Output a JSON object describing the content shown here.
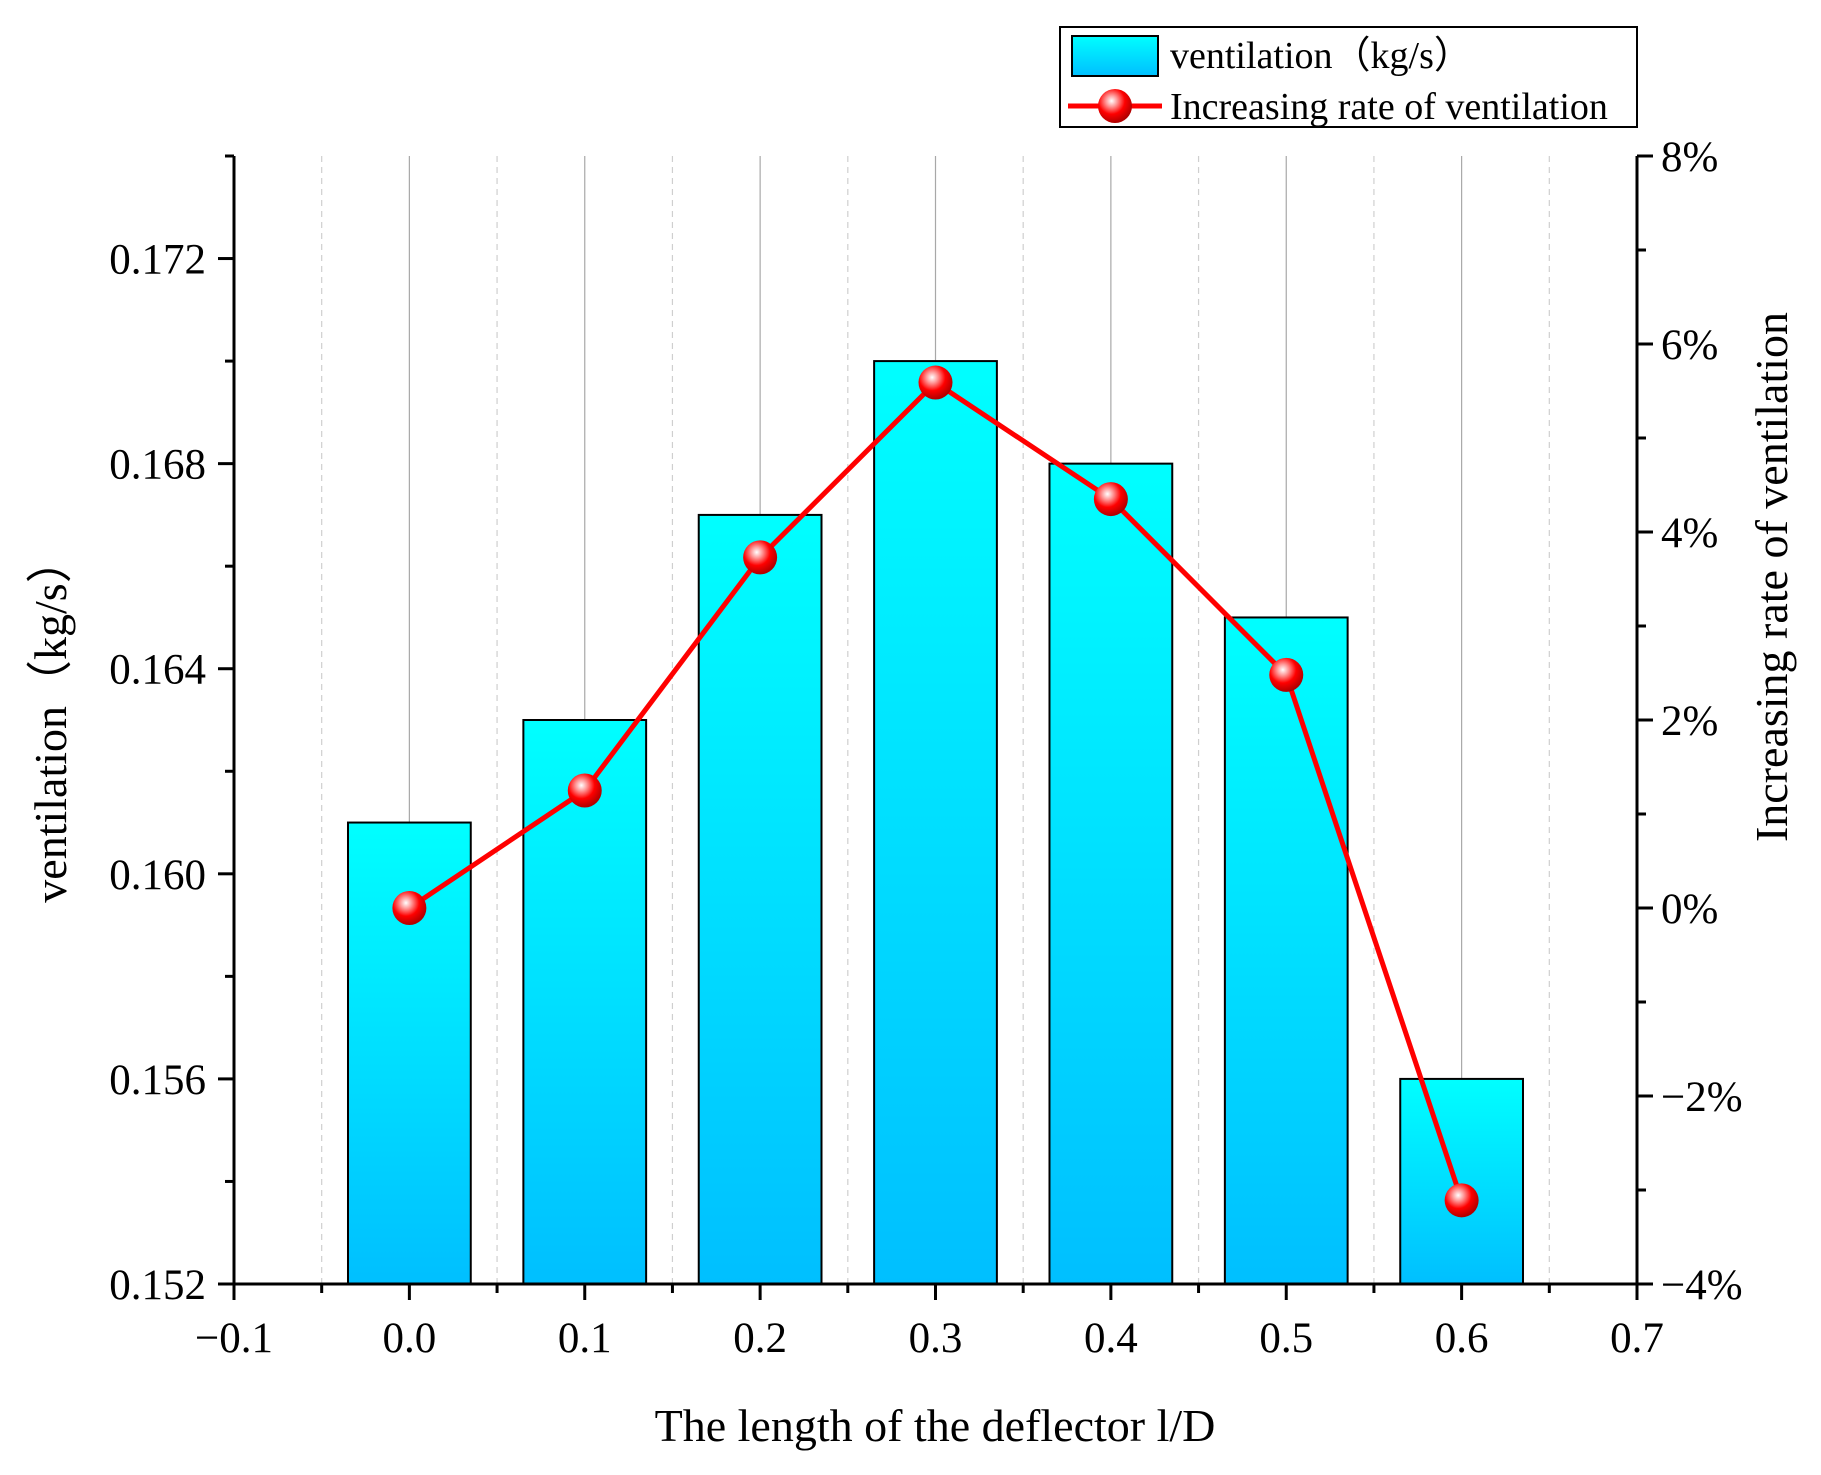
{
  "chart_data": {
    "type": "bar+line",
    "xlabel": "The length of the deflector l/D",
    "ylabel_left": "ventilation（kg/s）",
    "ylabel_right": "Increasing rate of ventilation",
    "xlim": [
      -0.1,
      0.7
    ],
    "x_ticks": [
      -0.1,
      0.0,
      0.1,
      0.2,
      0.3,
      0.4,
      0.5,
      0.6,
      0.7
    ],
    "x_tick_labels": [
      "−0.1",
      "0.0",
      "0.1",
      "0.2",
      "0.3",
      "0.4",
      "0.5",
      "0.6",
      "0.7"
    ],
    "ylim_left": [
      0.152,
      0.174
    ],
    "y_left_ticks": [
      0.152,
      0.156,
      0.16,
      0.164,
      0.168,
      0.172
    ],
    "y_left_tick_labels": [
      "0.152",
      "0.156",
      "0.160",
      "0.164",
      "0.168",
      "0.172"
    ],
    "ylim_right": [
      -4,
      8
    ],
    "y_right_ticks": [
      -4,
      -2,
      0,
      2,
      4,
      6,
      8
    ],
    "y_right_tick_labels": [
      "−4%",
      "−2%",
      "0%",
      "2%",
      "4%",
      "6%",
      "8%"
    ],
    "x": [
      0.0,
      0.1,
      0.2,
      0.3,
      0.4,
      0.5,
      0.6
    ],
    "series": [
      {
        "name": "ventilation（kg/s）",
        "type": "bar",
        "axis": "left",
        "values": [
          0.161,
          0.163,
          0.167,
          0.17,
          0.168,
          0.165,
          0.156
        ],
        "color_top": "#00ffff",
        "color_bottom": "#00bfff"
      },
      {
        "name": "Increasing rate of ventilation",
        "type": "line",
        "axis": "right",
        "unit": "%",
        "values": [
          0.0,
          1.25,
          3.73,
          5.59,
          4.35,
          2.48,
          -3.11
        ],
        "color": "#ff0000"
      }
    ],
    "legend_position": "top-right",
    "grid": "vertical"
  }
}
